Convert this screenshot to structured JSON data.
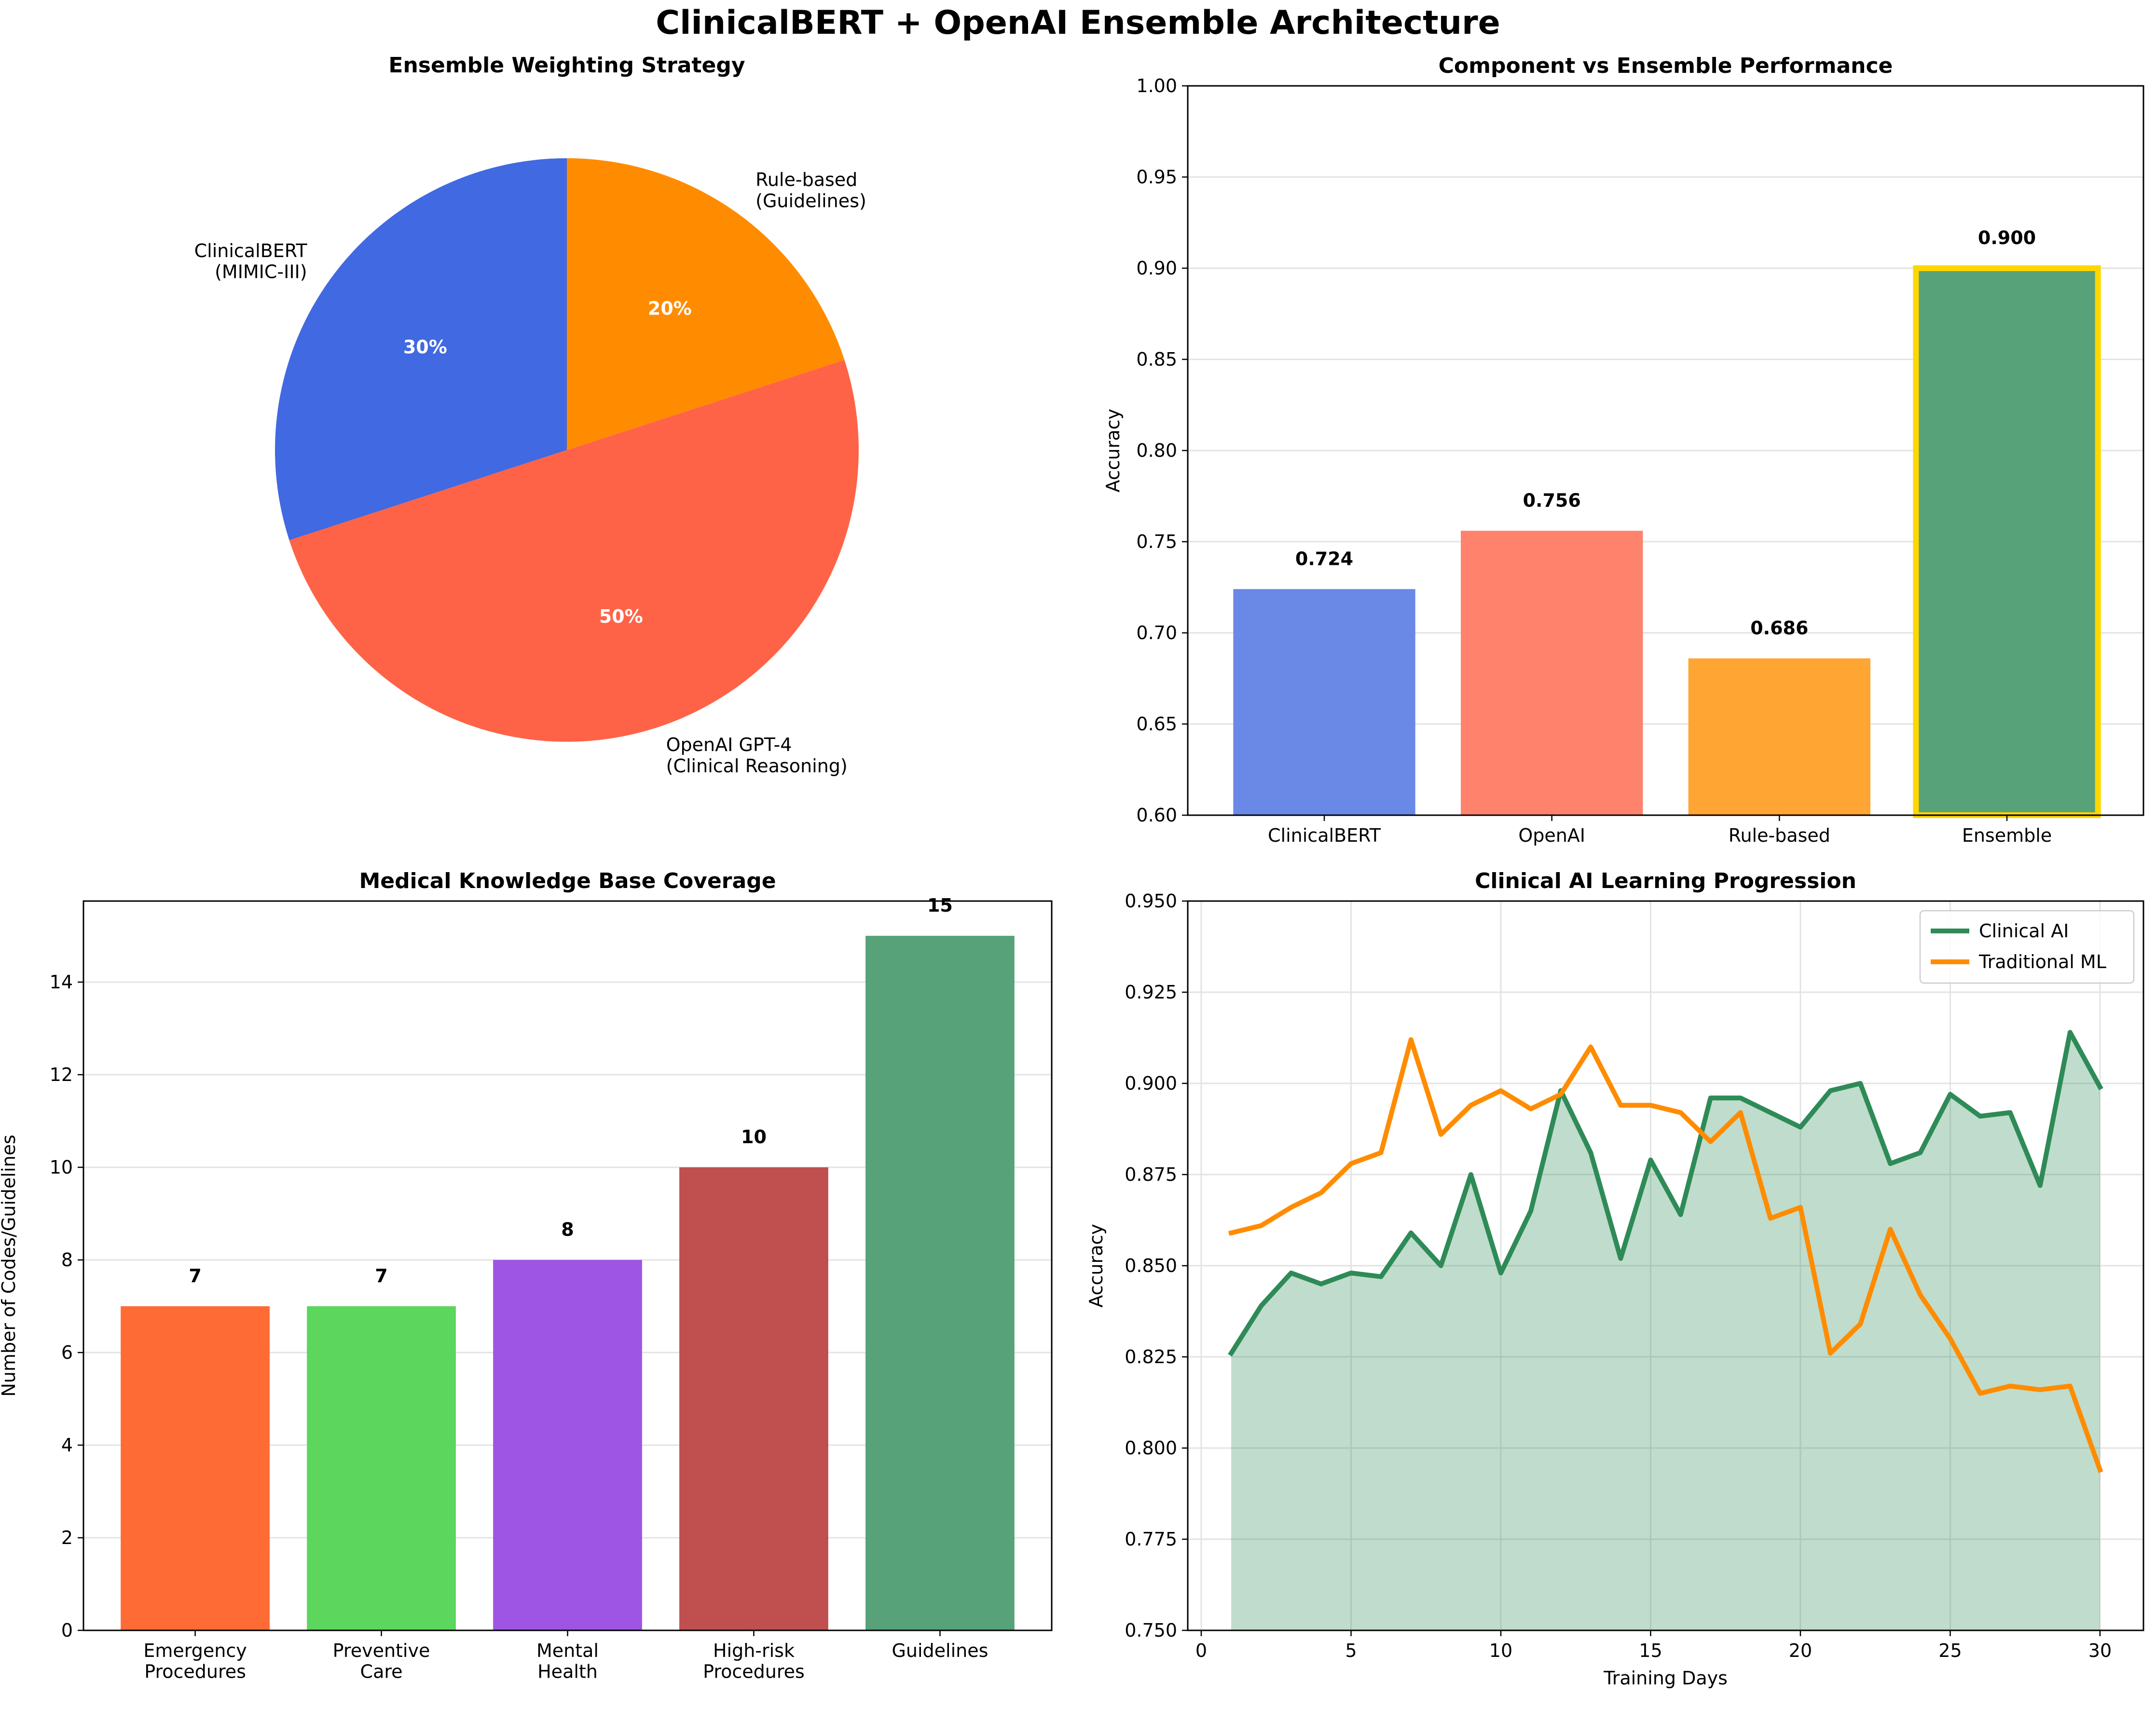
{
  "suptitle": "ClinicalBERT + OpenAI Ensemble Architecture",
  "chart_data": [
    {
      "type": "pie",
      "title": "Ensemble Weighting Strategy",
      "labels": [
        "ClinicalBERT\n(MIMIC-III)",
        "OpenAI GPT-4\n(Clinical Reasoning)",
        "Rule-based\n(Guidelines)"
      ],
      "values": [
        30,
        50,
        20
      ],
      "pct_labels": [
        "30%",
        "50%",
        "20%"
      ],
      "colors": [
        "#4169E1",
        "#FF6347",
        "#FF8C00"
      ],
      "start_angle_deg": 90
    },
    {
      "type": "bar",
      "title": "Component vs Ensemble Performance",
      "categories": [
        "ClinicalBERT",
        "OpenAI",
        "Rule-based",
        "Ensemble"
      ],
      "values": [
        0.724,
        0.756,
        0.686,
        0.9
      ],
      "value_labels": [
        "0.724",
        "0.756",
        "0.686",
        "0.900"
      ],
      "colors": [
        "#6A88E6",
        "#FF826C",
        "#FFA533",
        "#58A27A"
      ],
      "highlight_border_color": "#FFD700",
      "highlight_index": 3,
      "ylabel": "Accuracy",
      "xlabel": "",
      "ylim": [
        0.6,
        1.0
      ],
      "yticks": [
        0.6,
        0.65,
        0.7,
        0.75,
        0.8,
        0.85,
        0.9,
        0.95,
        1.0
      ],
      "ytick_labels": [
        "0.60",
        "0.65",
        "0.70",
        "0.75",
        "0.80",
        "0.85",
        "0.90",
        "0.95",
        "1.00"
      ],
      "grid": "y"
    },
    {
      "type": "bar",
      "title": "Medical Knowledge Base Coverage",
      "categories": [
        "Emergency\nProcedures",
        "Preventive\nCare",
        "Mental\nHealth",
        "High-risk\nProcedures",
        "Guidelines"
      ],
      "values": [
        7,
        7,
        8,
        10,
        15
      ],
      "value_labels": [
        "7",
        "7",
        "8",
        "10",
        "15"
      ],
      "colors": [
        "#FF6B35",
        "#5CD65C",
        "#9F55E3",
        "#C04F4F",
        "#58A27A"
      ],
      "ylabel": "Number of Codes/Guidelines",
      "xlabel": "",
      "ylim": [
        0,
        15.75
      ],
      "yticks": [
        0,
        2,
        4,
        6,
        8,
        10,
        12,
        14
      ],
      "ytick_labels": [
        "0",
        "2",
        "4",
        "6",
        "8",
        "10",
        "12",
        "14"
      ],
      "grid": "y"
    },
    {
      "type": "line",
      "title": "Clinical AI Learning Progression",
      "x": [
        1,
        2,
        3,
        4,
        5,
        6,
        7,
        8,
        9,
        10,
        11,
        12,
        13,
        14,
        15,
        16,
        17,
        18,
        19,
        20,
        21,
        22,
        23,
        24,
        25,
        26,
        27,
        28,
        29,
        30
      ],
      "series": [
        {
          "name": "Clinical AI",
          "color": "#2E8B57",
          "fill": true,
          "values": [
            0.826,
            0.839,
            0.848,
            0.845,
            0.848,
            0.847,
            0.859,
            0.85,
            0.875,
            0.848,
            0.865,
            0.898,
            0.881,
            0.852,
            0.879,
            0.864,
            0.896,
            0.896,
            0.892,
            0.888,
            0.898,
            0.9,
            0.878,
            0.881,
            0.897,
            0.891,
            0.892,
            0.872,
            0.914,
            0.899
          ]
        },
        {
          "name": "Traditional ML",
          "color": "#FF8C00",
          "fill": false,
          "values": [
            0.859,
            0.861,
            0.866,
            0.87,
            0.878,
            0.881,
            0.912,
            0.886,
            0.894,
            0.898,
            0.893,
            0.897,
            0.91,
            0.894,
            0.894,
            0.892,
            0.884,
            0.892,
            0.863,
            0.866,
            0.826,
            0.834,
            0.86,
            0.842,
            0.83,
            0.815,
            0.817,
            0.816,
            0.817,
            0.794
          ]
        }
      ],
      "xlabel": "Training Days",
      "ylabel": "Accuracy",
      "xlim": [
        -0.45,
        31.45
      ],
      "ylim": [
        0.75,
        0.95
      ],
      "xticks": [
        0,
        5,
        10,
        15,
        20,
        25,
        30
      ],
      "xtick_labels": [
        "0",
        "5",
        "10",
        "15",
        "20",
        "25",
        "30"
      ],
      "yticks": [
        0.75,
        0.775,
        0.8,
        0.825,
        0.85,
        0.875,
        0.9,
        0.925,
        0.95
      ],
      "ytick_labels": [
        "0.750",
        "0.775",
        "0.800",
        "0.825",
        "0.850",
        "0.875",
        "0.900",
        "0.925",
        "0.950"
      ],
      "grid": "both",
      "legend_position": "top-right"
    }
  ]
}
